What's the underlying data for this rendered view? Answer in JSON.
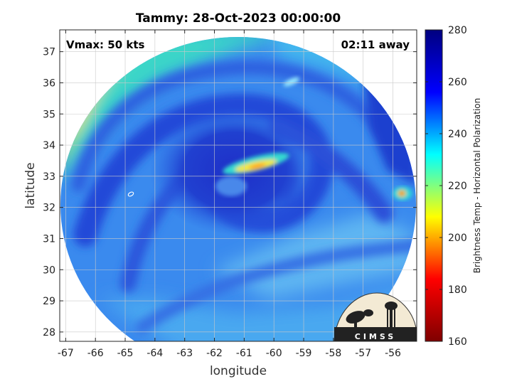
{
  "title": "Tammy: 28-Oct-2023 00:00:00",
  "annotations": {
    "vmax": "Vmax: 50 kts",
    "time_away": "02:11 away"
  },
  "logo_text": "CIMSS",
  "axes": {
    "xlabel": "longitude",
    "ylabel": "latitude",
    "xlim": [
      -67.2,
      -55.2
    ],
    "ylim": [
      27.7,
      37.7
    ],
    "xticks": [
      "-67",
      "-66",
      "-65",
      "-64",
      "-63",
      "-62",
      "-61",
      "-60",
      "-59",
      "-58",
      "-57",
      "-56"
    ],
    "yticks": [
      "28",
      "29",
      "30",
      "31",
      "32",
      "33",
      "34",
      "35",
      "36",
      "37"
    ],
    "grid": true
  },
  "colorbar": {
    "label": "Brightness Temp - Horizontal Polarization",
    "ticks": [
      "160",
      "180",
      "200",
      "220",
      "240",
      "260",
      "280"
    ],
    "range": [
      160,
      280
    ],
    "colormap": "jet",
    "colors": [
      "#7f0000",
      "#ff0000",
      "#ffff00",
      "#00ffff",
      "#0000ff",
      "#00007f"
    ]
  },
  "chart_data": {
    "type": "heatmap",
    "title": "Tammy: 28-Oct-2023 00:00:00",
    "xlabel": "longitude",
    "ylabel": "latitude",
    "xlim": [
      -67.2,
      -55.2
    ],
    "ylim": [
      27.7,
      37.7
    ],
    "storm_center": {
      "lon": -61.0,
      "lat": 32.9
    },
    "values_range": [
      160,
      280
    ]
  }
}
